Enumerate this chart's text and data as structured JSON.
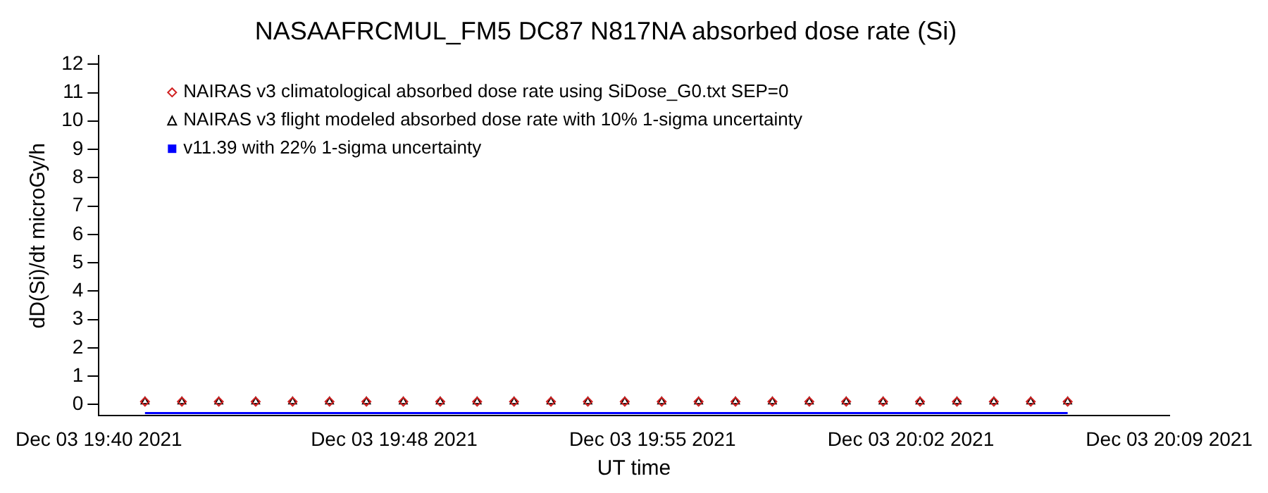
{
  "chart_data": {
    "type": "scatter",
    "title": "NASAAFRCMUL_FM5 DC87 N817NA absorbed dose rate (Si)",
    "xlabel": "UT time",
    "ylabel": "dD(Si)/dt microGy/h",
    "x": [
      "2021-12-03T19:41:15",
      "2021-12-03T19:42:15",
      "2021-12-03T19:43:15",
      "2021-12-03T19:44:15",
      "2021-12-03T19:45:15",
      "2021-12-03T19:46:15",
      "2021-12-03T19:47:15",
      "2021-12-03T19:48:15",
      "2021-12-03T19:49:15",
      "2021-12-03T19:50:15",
      "2021-12-03T19:51:15",
      "2021-12-03T19:52:15",
      "2021-12-03T19:53:15",
      "2021-12-03T19:54:15",
      "2021-12-03T19:55:15",
      "2021-12-03T19:56:15",
      "2021-12-03T19:57:15",
      "2021-12-03T19:58:15",
      "2021-12-03T19:59:15",
      "2021-12-03T20:00:15",
      "2021-12-03T20:01:15",
      "2021-12-03T20:02:15",
      "2021-12-03T20:03:15",
      "2021-12-03T20:04:15",
      "2021-12-03T20:05:15",
      "2021-12-03T20:06:15"
    ],
    "series": [
      {
        "name": "NAIRAS v3 climatological absorbed dose rate using SiDose_G0.txt SEP=0",
        "color": "#d02020",
        "marker": "diamond",
        "values": [
          0.1,
          0.1,
          0.1,
          0.1,
          0.1,
          0.1,
          0.1,
          0.1,
          0.1,
          0.1,
          0.1,
          0.1,
          0.1,
          0.1,
          0.1,
          0.1,
          0.1,
          0.1,
          0.1,
          0.1,
          0.1,
          0.1,
          0.1,
          0.1,
          0.1,
          0.1
        ]
      },
      {
        "name": "NAIRAS v3 flight modeled absorbed dose rate with 10% 1-sigma uncertainty",
        "color": "#000000",
        "marker": "triangle",
        "values": [
          0.1,
          0.1,
          0.1,
          0.1,
          0.1,
          0.1,
          0.1,
          0.1,
          0.1,
          0.1,
          0.1,
          0.1,
          0.1,
          0.1,
          0.1,
          0.1,
          0.1,
          0.1,
          0.1,
          0.1,
          0.1,
          0.1,
          0.1,
          0.1,
          0.1,
          0.1
        ]
      },
      {
        "name": "v11.39 with 22% 1-sigma uncertainty",
        "type": "line",
        "color": "#0000ff",
        "marker": "none",
        "values": [
          -0.3,
          -0.3,
          -0.3,
          -0.3,
          -0.3,
          -0.3,
          -0.3,
          -0.3,
          -0.3,
          -0.3,
          -0.3,
          -0.3,
          -0.3,
          -0.3,
          -0.3,
          -0.3,
          -0.3,
          -0.3,
          -0.3,
          -0.3,
          -0.3,
          -0.3,
          -0.3,
          -0.3,
          -0.3,
          -0.3
        ]
      }
    ],
    "xlim": [
      "2021-12-03T19:40",
      "2021-12-03T20:09"
    ],
    "xticks": [
      {
        "value": "2021-12-03T19:40",
        "label": "Dec 03 19:40 2021"
      },
      {
        "value": "2021-12-03T19:48",
        "label": "Dec 03 19:48 2021"
      },
      {
        "value": "2021-12-03T19:55",
        "label": "Dec 03 19:55 2021"
      },
      {
        "value": "2021-12-03T20:02",
        "label": "Dec 03 20:02 2021"
      },
      {
        "value": "2021-12-03T20:09",
        "label": "Dec 03 20:09 2021"
      }
    ],
    "ylim": [
      -0.4,
      12.3
    ],
    "yticks": [
      0,
      1,
      2,
      3,
      4,
      5,
      6,
      7,
      8,
      9,
      10,
      11,
      12
    ],
    "grid": false,
    "legend": "top left"
  }
}
